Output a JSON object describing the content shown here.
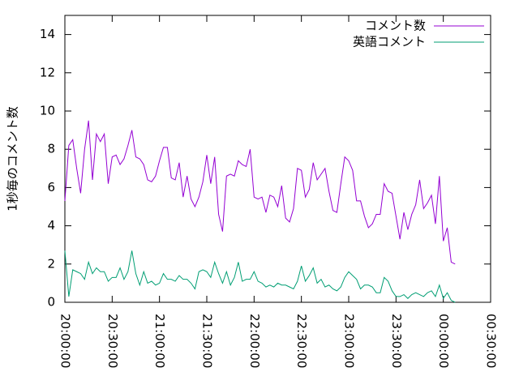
{
  "chart_data": {
    "type": "line",
    "y_label": "1秒毎のコメント数",
    "x": [
      "20:00:00",
      "20:02:30",
      "20:05:00",
      "20:07:30",
      "20:10:00",
      "20:12:30",
      "20:15:00",
      "20:17:30",
      "20:20:00",
      "20:22:30",
      "20:25:00",
      "20:27:30",
      "20:30:00",
      "20:32:30",
      "20:35:00",
      "20:37:30",
      "20:40:00",
      "20:42:30",
      "20:45:00",
      "20:47:30",
      "20:50:00",
      "20:52:30",
      "20:55:00",
      "20:57:30",
      "21:00:00",
      "21:02:30",
      "21:05:00",
      "21:07:30",
      "21:10:00",
      "21:12:30",
      "21:15:00",
      "21:17:30",
      "21:20:00",
      "21:22:30",
      "21:25:00",
      "21:27:30",
      "21:30:00",
      "21:32:30",
      "21:35:00",
      "21:37:30",
      "21:40:00",
      "21:42:30",
      "21:45:00",
      "21:47:30",
      "21:50:00",
      "21:52:30",
      "21:55:00",
      "21:57:30",
      "22:00:00",
      "22:02:30",
      "22:05:00",
      "22:07:30",
      "22:10:00",
      "22:12:30",
      "22:15:00",
      "22:17:30",
      "22:20:00",
      "22:22:30",
      "22:25:00",
      "22:27:30",
      "22:30:00",
      "22:32:30",
      "22:35:00",
      "22:37:30",
      "22:40:00",
      "22:42:30",
      "22:45:00",
      "22:47:30",
      "22:50:00",
      "22:52:30",
      "22:55:00",
      "22:57:30",
      "23:00:00",
      "23:02:30",
      "23:05:00",
      "23:07:30",
      "23:10:00",
      "23:12:30",
      "23:15:00",
      "23:17:30",
      "23:20:00",
      "23:22:30",
      "23:25:00",
      "23:27:30",
      "23:30:00",
      "23:32:30",
      "23:35:00",
      "23:37:30",
      "23:40:00",
      "23:42:30",
      "23:45:00",
      "23:47:30",
      "23:50:00",
      "23:52:30",
      "23:55:00",
      "23:57:30",
      "00:00:00",
      "00:02:30",
      "00:05:00",
      "00:07:30"
    ],
    "series": [
      {
        "name": "コメント数",
        "color": "#9400d3",
        "values": [
          5.3,
          8.2,
          8.5,
          7.0,
          5.7,
          8.0,
          9.5,
          6.4,
          8.8,
          8.4,
          8.8,
          6.2,
          7.6,
          7.7,
          7.2,
          7.5,
          8.2,
          9.0,
          7.6,
          7.5,
          7.2,
          6.4,
          6.3,
          6.6,
          7.4,
          8.1,
          8.1,
          6.5,
          6.4,
          7.3,
          5.5,
          6.6,
          5.4,
          5.0,
          5.5,
          6.3,
          7.7,
          6.2,
          7.6,
          4.6,
          3.7,
          6.6,
          6.7,
          6.6,
          7.4,
          7.2,
          7.1,
          8.0,
          5.5,
          5.4,
          5.5,
          4.7,
          5.6,
          5.5,
          5.0,
          6.1,
          4.4,
          4.2,
          4.9,
          7.0,
          6.9,
          5.5,
          5.9,
          7.3,
          6.4,
          6.7,
          7.0,
          5.8,
          4.8,
          4.7,
          6.2,
          7.6,
          7.4,
          6.9,
          5.3,
          5.3,
          4.5,
          3.9,
          4.1,
          4.6,
          4.6,
          6.2,
          5.8,
          5.7,
          4.5,
          3.3,
          4.7,
          3.8,
          4.6,
          5.1,
          6.4,
          4.9,
          5.2,
          5.6,
          4.1,
          6.6,
          3.2,
          3.9,
          2.1,
          2.0
        ]
      },
      {
        "name": "英語コメント",
        "color": "#009e73",
        "values": [
          2.7,
          0.3,
          1.7,
          1.6,
          1.5,
          1.2,
          2.1,
          1.5,
          1.8,
          1.6,
          1.6,
          1.1,
          1.3,
          1.3,
          1.8,
          1.2,
          1.6,
          2.7,
          1.5,
          0.9,
          1.6,
          1.0,
          1.1,
          0.9,
          1.0,
          1.5,
          1.2,
          1.2,
          1.1,
          1.4,
          1.2,
          1.2,
          1.0,
          0.7,
          1.6,
          1.7,
          1.6,
          1.3,
          2.1,
          1.5,
          1.0,
          1.6,
          0.9,
          1.3,
          2.1,
          1.1,
          1.2,
          1.2,
          1.6,
          1.1,
          1.0,
          0.8,
          0.9,
          0.8,
          1.0,
          0.9,
          0.9,
          0.8,
          0.7,
          1.1,
          1.9,
          1.1,
          1.4,
          1.8,
          1.0,
          1.2,
          0.8,
          0.9,
          0.7,
          0.6,
          0.8,
          1.3,
          1.6,
          1.4,
          1.2,
          0.7,
          0.9,
          0.9,
          0.8,
          0.5,
          0.5,
          1.3,
          1.1,
          0.6,
          0.3,
          0.3,
          0.4,
          0.2,
          0.4,
          0.5,
          0.4,
          0.3,
          0.5,
          0.6,
          0.3,
          0.9,
          0.2,
          0.5,
          0.1,
          0.0
        ]
      }
    ],
    "xlim": [
      "20:00:00",
      "00:30:00"
    ],
    "xticks": [
      "20:00:00",
      "20:30:00",
      "21:00:00",
      "21:30:00",
      "22:00:00",
      "22:30:00",
      "23:00:00",
      "23:30:00",
      "00:00:00",
      "00:30:00"
    ],
    "ylim": [
      0,
      15
    ],
    "yticks": [
      0,
      2,
      4,
      6,
      8,
      10,
      12,
      14
    ],
    "legend": "top-right",
    "grid": false
  }
}
